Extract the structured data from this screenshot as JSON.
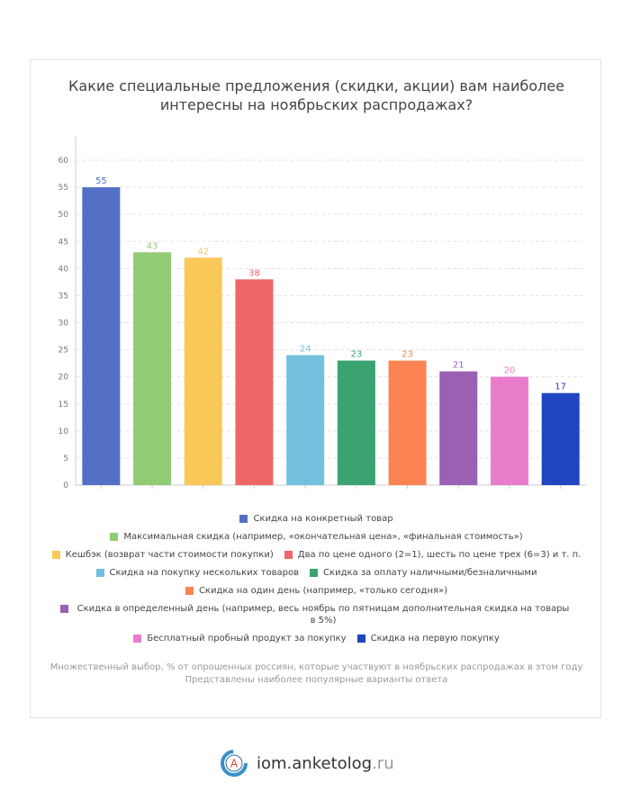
{
  "title": "Какие специальные предложения (скидки, акции) вам наиболее интересны на ноябрьских распродажах?",
  "chart_data": {
    "type": "bar",
    "title": "Какие специальные предложения (скидки, акции) вам наиболее интересны на ноябрьских распродажах?",
    "categories": [
      "Скидка на конкретный товар",
      "Максимальная скидка (например, «окончательная цена», «финальная стоимость»)",
      "Кешбэк (возврат части стоимости покупки)",
      "Два по цене одного (2=1), шесть по цене трех (6=3) и т. п.",
      "Скидка на покупку нескольких товаров",
      "Скидка за оплату наличными/безналичными",
      "Скидка на один день (например, «только сегодня»)",
      "Скидка в определенный день (например, весь ноябрь по пятницам дополнительная скидка на товары в 5%)",
      "Бесплатный пробный продукт за покупку",
      "Скидка на первую покупку"
    ],
    "values": [
      55,
      43,
      42,
      38,
      24,
      23,
      23,
      21,
      20,
      17
    ],
    "colors": [
      "#5470c6",
      "#91cc75",
      "#fac858",
      "#ee6666",
      "#73c0de",
      "#3ba272",
      "#fc8452",
      "#9a60b4",
      "#ea7ccc",
      "#2045c0"
    ],
    "yticks": [
      "0",
      "5",
      "10",
      "15",
      "20",
      "25",
      "30",
      "35",
      "40",
      "45",
      "50",
      "55",
      "60"
    ],
    "ylim": [
      0,
      60
    ],
    "grid": true,
    "legend_position": "bottom"
  },
  "legend_rows": [
    [
      0
    ],
    [
      1
    ],
    [
      2,
      3
    ],
    [
      4,
      5
    ],
    [
      6
    ],
    [
      7
    ],
    [
      8,
      9
    ]
  ],
  "notes": {
    "line1": "Множественный выбор, % от опрошенных россиян, которые участвуют в ноябрьских распродажах в этом году",
    "line2": "Представлены наиболее популярные варианты ответа"
  },
  "brand": {
    "name": "iom.anketolog",
    "tld": ".ru",
    "logo_letter": "A"
  }
}
